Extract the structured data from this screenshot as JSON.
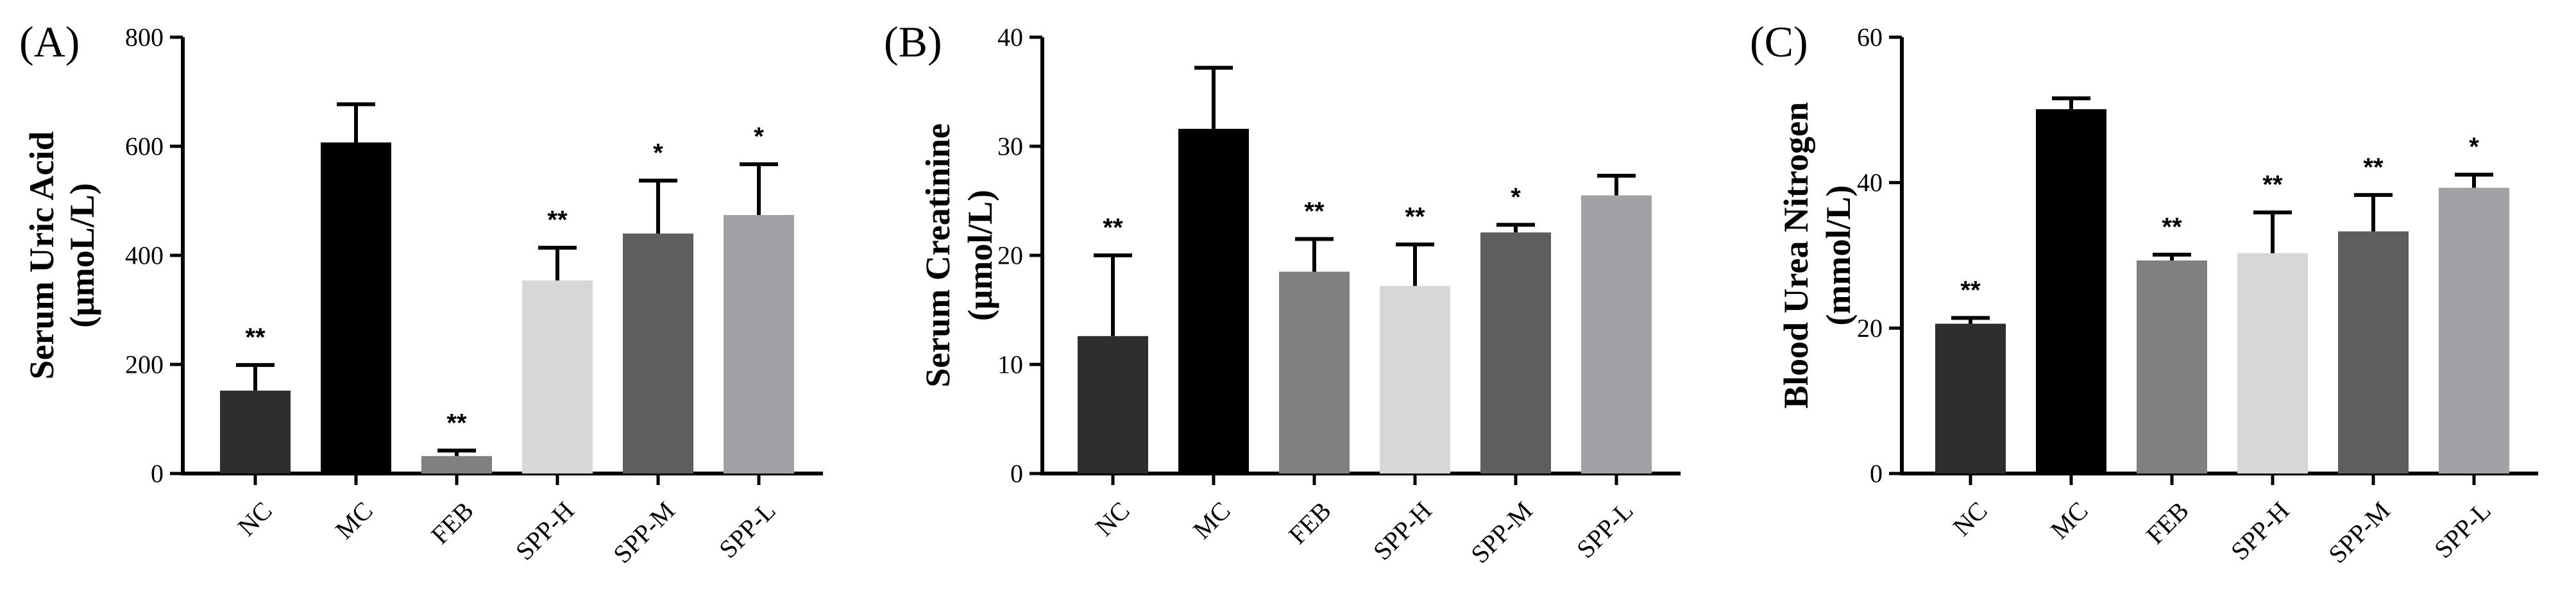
{
  "chart_data": [
    {
      "type": "bar",
      "panel": "(A)",
      "ylabel": [
        "Serum Uric Acid",
        "(μmoL/L)"
      ],
      "ylim": [
        0,
        800
      ],
      "yticks": [
        0,
        200,
        400,
        600,
        800
      ],
      "categories": [
        "NC",
        "MC",
        "FEB",
        "SPP-H",
        "SPP-M",
        "SPP-L"
      ],
      "values": [
        152,
        607,
        32,
        354,
        440,
        474
      ],
      "errors": [
        47,
        70,
        10,
        60,
        97,
        93
      ],
      "significance": [
        "**",
        "",
        "**",
        "**",
        "*",
        "*"
      ],
      "colors": [
        "#2e2e2e",
        "#000000",
        "#808080",
        "#d7d7d7",
        "#5e5e5e",
        "#a2a1a6"
      ]
    },
    {
      "type": "bar",
      "panel": "(B)",
      "ylabel": [
        "Serum Creatinine",
        "(μmol/L)"
      ],
      "ylim": [
        0,
        40
      ],
      "yticks": [
        0,
        10,
        20,
        30,
        40
      ],
      "categories": [
        "NC",
        "MC",
        "FEB",
        "SPP-H",
        "SPP-M",
        "SPP-L"
      ],
      "values": [
        12.6,
        31.6,
        18.5,
        17.2,
        22.1,
        25.5
      ],
      "errors": [
        7.4,
        5.6,
        3.0,
        3.8,
        0.7,
        1.8
      ],
      "significance": [
        "**",
        "",
        "**",
        "**",
        "*",
        ""
      ],
      "colors": [
        "#2e2e2e",
        "#000000",
        "#808080",
        "#d7d7d7",
        "#5e5e5e",
        "#a2a1a6"
      ]
    },
    {
      "type": "bar",
      "panel": "(C)",
      "ylabel": [
        "Blood Urea Nitrogen",
        "(mmol/L)"
      ],
      "ylim": [
        0,
        60
      ],
      "yticks": [
        0,
        20,
        40,
        60
      ],
      "categories": [
        "NC",
        "MC",
        "FEB",
        "SPP-H",
        "SPP-M",
        "SPP-L"
      ],
      "values": [
        20.6,
        50.1,
        29.3,
        30.3,
        33.3,
        39.3
      ],
      "errors": [
        0.8,
        1.5,
        0.8,
        5.6,
        5.0,
        1.8
      ],
      "significance": [
        "**",
        "",
        "**",
        "**",
        "**",
        "*"
      ],
      "colors": [
        "#2e2e2e",
        "#000000",
        "#808080",
        "#d7d7d7",
        "#5e5e5e",
        "#a2a1a6"
      ]
    }
  ]
}
